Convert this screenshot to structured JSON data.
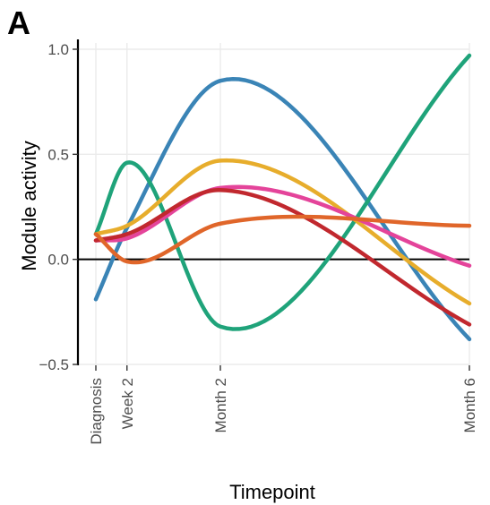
{
  "chart_data": {
    "type": "line",
    "panel_label": "A",
    "xlabel": "Timepoint",
    "ylabel": "Module activity",
    "x": [
      0,
      2,
      8,
      24
    ],
    "x_tick_labels": [
      "Diagnosis",
      "Week 2",
      "Month 2",
      "Month 6"
    ],
    "y_ticks": [
      -0.5,
      0.0,
      0.5,
      1.0
    ],
    "y_tick_labels": [
      "−0.5",
      "0.0",
      "0.5",
      "1.0"
    ],
    "xlim": [
      0,
      24
    ],
    "ylim": [
      -0.5,
      1.0
    ],
    "grid": true,
    "zero_line": true,
    "series": [
      {
        "color": "#3a84b6",
        "values": [
          -0.19,
          0.15,
          0.85,
          -0.38
        ]
      },
      {
        "color": "#1fa37a",
        "values": [
          0.12,
          0.46,
          -0.32,
          0.97
        ]
      },
      {
        "color": "#e7ad2c",
        "values": [
          0.12,
          0.16,
          0.47,
          -0.21
        ]
      },
      {
        "color": "#e4449a",
        "values": [
          0.09,
          0.1,
          0.34,
          -0.03
        ]
      },
      {
        "color": "#c1282e",
        "values": [
          0.09,
          0.12,
          0.33,
          -0.31
        ]
      },
      {
        "color": "#e0662a",
        "values": [
          0.12,
          -0.01,
          0.17,
          0.16
        ]
      }
    ]
  }
}
